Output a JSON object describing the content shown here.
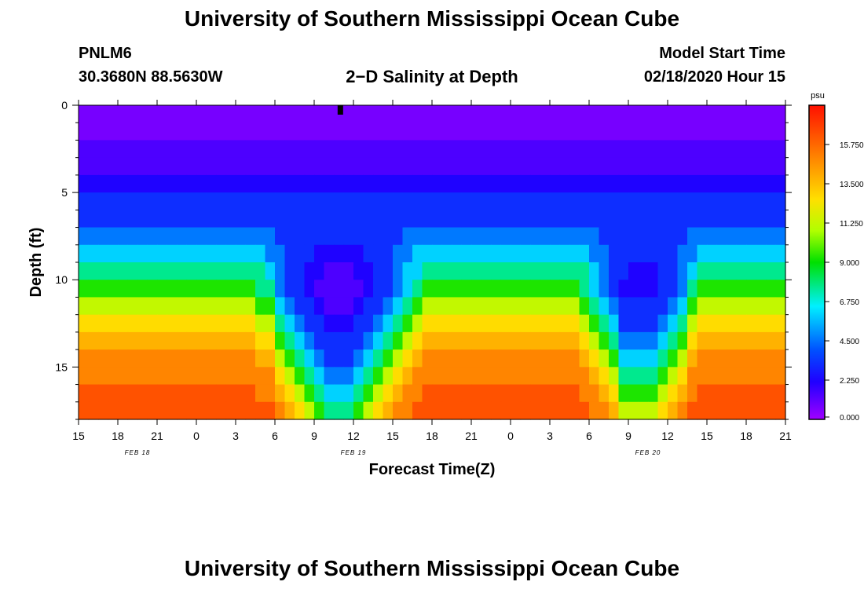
{
  "header": {
    "title_top": "University of Southern Mississippi Ocean Cube",
    "title_bottom": "University of Southern Mississippi Ocean Cube",
    "station": "PNLM6",
    "coords": "30.3680N 88.5630W",
    "subtitle": "2−D Salinity at Depth",
    "model_label": "Model Start Time",
    "model_time": "02/18/2020 Hour 15"
  },
  "chart_data": {
    "type": "heatmap",
    "title": "2-D Salinity at Depth",
    "xlabel": "Forecast Time(Z)",
    "ylabel": "Depth (ft)",
    "x_tick_labels": [
      "15",
      "18",
      "21",
      "0",
      "3",
      "6",
      "9",
      "12",
      "15",
      "18",
      "21",
      "0",
      "3",
      "6",
      "9",
      "12",
      "15",
      "18",
      "21"
    ],
    "x_date_labels": [
      {
        "text": "FEB 18",
        "tick_index": 1.5
      },
      {
        "text": "FEB 19",
        "tick_index": 7
      },
      {
        "text": "FEB 20",
        "tick_index": 14.5
      }
    ],
    "x_range_hours": [
      0,
      54
    ],
    "y_ticks": [
      0,
      5,
      10,
      15
    ],
    "ylim": [
      0,
      18
    ],
    "colorbar": {
      "unit": "psu",
      "tick_values": [
        0.0,
        2.25,
        4.5,
        6.75,
        9.0,
        11.25,
        13.5,
        15.75
      ],
      "tick_labels": [
        "0.000",
        "2.250",
        "4.500",
        "6.750",
        "9.000",
        "11.250",
        "13.500",
        "15.750"
      ],
      "range": [
        0,
        18
      ]
    },
    "salinity_bands_psu": [
      {
        "top_ft": 0,
        "bottom_ft": 2,
        "value": 0.7
      },
      {
        "top_ft": 2,
        "bottom_ft": 4,
        "value": 1.4
      },
      {
        "top_ft": 4,
        "bottom_ft": 5,
        "value": 2.2
      },
      {
        "top_ft": 5,
        "bottom_ft": 7,
        "value": 3.2
      },
      {
        "top_ft": 7,
        "bottom_ft": 8,
        "value": 4.6
      },
      {
        "top_ft": 8,
        "bottom_ft": 9,
        "value": 6.0
      },
      {
        "top_ft": 9,
        "bottom_ft": 10,
        "value": 7.6
      },
      {
        "top_ft": 10,
        "bottom_ft": 11,
        "value": 9.3
      },
      {
        "top_ft": 11,
        "bottom_ft": 12,
        "value": 11.2
      },
      {
        "top_ft": 12,
        "bottom_ft": 13,
        "value": 12.7
      },
      {
        "top_ft": 13,
        "bottom_ft": 14,
        "value": 13.8
      },
      {
        "top_ft": 14,
        "bottom_ft": 16,
        "value": 15.0
      },
      {
        "top_ft": 16,
        "bottom_ft": 18,
        "value": 16.3
      }
    ],
    "freshwater_intrusions": [
      {
        "center_hour": 20,
        "half_width_hours": 7.5,
        "depth_reach_ft": 17.3
      },
      {
        "center_hour": 43,
        "half_width_hours": 5.5,
        "depth_reach_ft": 15.8
      }
    ],
    "surface_marker_hour": 20
  }
}
